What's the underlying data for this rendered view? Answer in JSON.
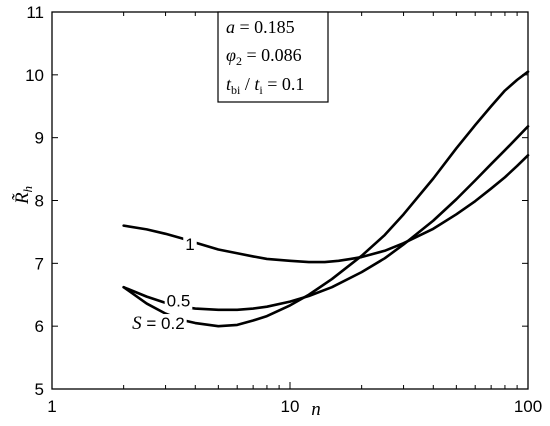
{
  "chart_data": {
    "type": "line",
    "title": "",
    "xlabel": "n",
    "ylabel": "R̃h",
    "ylabel_parts": {
      "base": "R̃",
      "sub": "h"
    },
    "xscale": "log",
    "xlim": [
      1,
      100
    ],
    "ylim": [
      5,
      11
    ],
    "xticks": [
      1,
      10,
      100
    ],
    "xtick_labels": [
      "1",
      "10",
      "100"
    ],
    "yticks": [
      5,
      6,
      7,
      8,
      9,
      10,
      11
    ],
    "ytick_labels": [
      "5",
      "6",
      "7",
      "8",
      "9",
      "10",
      "11"
    ],
    "grid": false,
    "legend": "none",
    "annotation": {
      "lines": [
        {
          "var": "a",
          "sub": "",
          "op": " = ",
          "value": "0.185"
        },
        {
          "var": "φ",
          "sub": "2",
          "op": " = ",
          "value": "0.086"
        },
        {
          "var": "t",
          "sub": "bi",
          "op": " / ",
          "var2": "t",
          "sub2": "i",
          "op2": " = ",
          "value": "0.1"
        }
      ]
    },
    "series": [
      {
        "label": "1",
        "label_at": {
          "x": 3.8,
          "y": 7.31
        },
        "points": [
          [
            2,
            7.6
          ],
          [
            2.5,
            7.54
          ],
          [
            3,
            7.47
          ],
          [
            3.5,
            7.4
          ],
          [
            4,
            7.33
          ],
          [
            5,
            7.22
          ],
          [
            6,
            7.16
          ],
          [
            7,
            7.11
          ],
          [
            8,
            7.07
          ],
          [
            10,
            7.04
          ],
          [
            12,
            7.02
          ],
          [
            14,
            7.02
          ],
          [
            16,
            7.04
          ],
          [
            18,
            7.07
          ],
          [
            20,
            7.1
          ],
          [
            25,
            7.2
          ],
          [
            30,
            7.32
          ],
          [
            40,
            7.55
          ],
          [
            50,
            7.78
          ],
          [
            60,
            7.99
          ],
          [
            70,
            8.19
          ],
          [
            80,
            8.37
          ],
          [
            90,
            8.55
          ],
          [
            100,
            8.72
          ]
        ]
      },
      {
        "label": "0.5",
        "label_at": {
          "x": 3.4,
          "y": 6.41
        },
        "points": [
          [
            2,
            6.62
          ],
          [
            2.5,
            6.47
          ],
          [
            3,
            6.37
          ],
          [
            3.5,
            6.31
          ],
          [
            4,
            6.28
          ],
          [
            5,
            6.26
          ],
          [
            6,
            6.26
          ],
          [
            7,
            6.28
          ],
          [
            8,
            6.31
          ],
          [
            10,
            6.39
          ],
          [
            12,
            6.48
          ],
          [
            15,
            6.62
          ],
          [
            20,
            6.86
          ],
          [
            25,
            7.08
          ],
          [
            30,
            7.3
          ],
          [
            40,
            7.68
          ],
          [
            50,
            8.02
          ],
          [
            60,
            8.32
          ],
          [
            70,
            8.58
          ],
          [
            80,
            8.8
          ],
          [
            90,
            9.0
          ],
          [
            100,
            9.18
          ]
        ]
      },
      {
        "label": "S = 0.2",
        "label_at": {
          "x": 2.8,
          "y": 6.05
        },
        "points": [
          [
            2,
            6.62
          ],
          [
            2.5,
            6.36
          ],
          [
            3,
            6.2
          ],
          [
            3.5,
            6.1
          ],
          [
            4,
            6.05
          ],
          [
            5,
            6.0
          ],
          [
            6,
            6.02
          ],
          [
            7,
            6.09
          ],
          [
            8,
            6.16
          ],
          [
            10,
            6.33
          ],
          [
            12,
            6.5
          ],
          [
            15,
            6.75
          ],
          [
            20,
            7.12
          ],
          [
            25,
            7.45
          ],
          [
            30,
            7.78
          ],
          [
            40,
            8.35
          ],
          [
            50,
            8.83
          ],
          [
            60,
            9.2
          ],
          [
            70,
            9.5
          ],
          [
            80,
            9.75
          ],
          [
            90,
            9.92
          ],
          [
            100,
            10.05
          ]
        ]
      }
    ]
  }
}
